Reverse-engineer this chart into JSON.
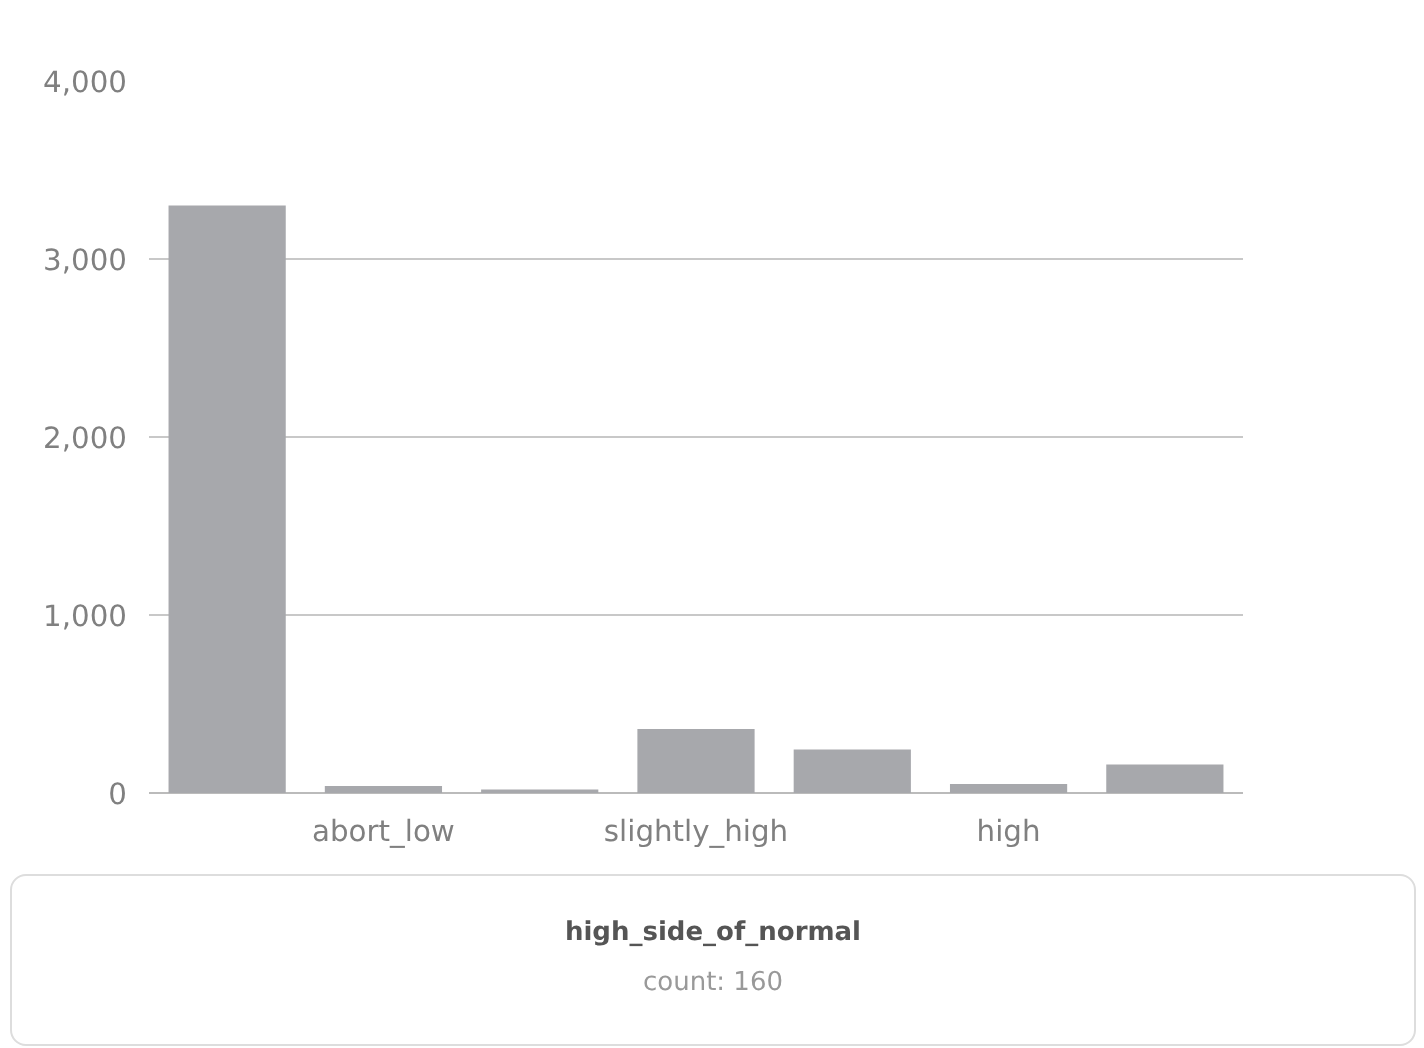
{
  "chart_data": {
    "type": "bar",
    "categories": [
      null,
      "abort_low",
      null,
      "slightly_high",
      null,
      "high",
      null
    ],
    "values": [
      3300,
      40,
      20,
      360,
      245,
      50,
      160
    ],
    "color": "#a7a8ac",
    "ylim": [
      0,
      4000
    ],
    "yticks": [
      {
        "value": 0,
        "label": "0"
      },
      {
        "value": 1000,
        "label": "1,000"
      },
      {
        "value": 2000,
        "label": "2,000"
      },
      {
        "value": 3000,
        "label": "3,000"
      },
      {
        "value": 4000,
        "label": "4,000"
      }
    ],
    "grid": "y",
    "annotations": [
      "high_side_of_normal",
      "count: 160"
    ]
  }
}
